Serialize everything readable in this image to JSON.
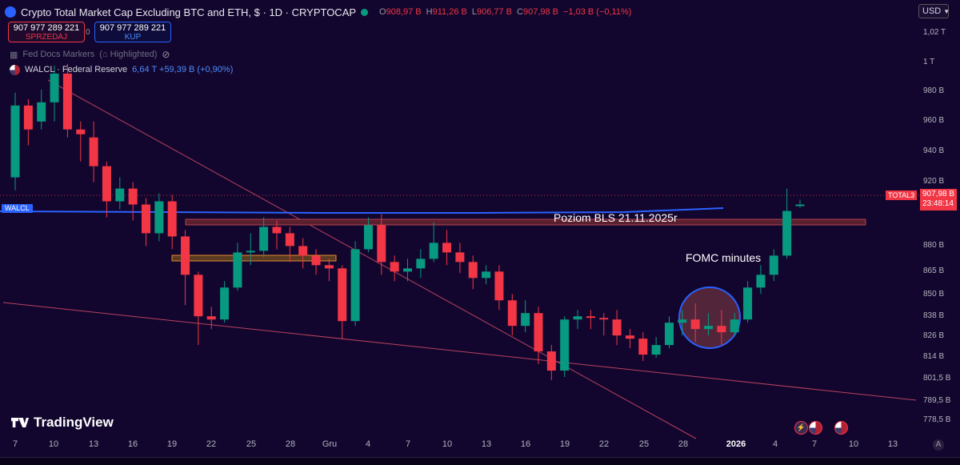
{
  "header": {
    "title": "Crypto Total Market Cap Excluding BTC and ETH, $ · 1D · CRYPTOCAP",
    "ohlc": {
      "o": "908,97 B",
      "h": "911,26 B",
      "l": "906,77 B",
      "c": "907,98 B",
      "change": "−1,03 B (−0,11%)"
    },
    "o_label": "O",
    "h_label": "H",
    "l_label": "L",
    "c_label": "C"
  },
  "trade": {
    "sell_price": "907 977 289 221",
    "sell_label": "SPRZEDAJ",
    "buy_price": "907 977 289 221",
    "buy_label": "KUP",
    "spread": "0"
  },
  "legend": {
    "fed_docs": "Fed Docs Markers",
    "fed_docs_extra": "Highlighted",
    "walcl_name": "WALCL · Federal Reserve",
    "walcl_vals": "6,64 T  +59,39 B (+0,90%)"
  },
  "currency": {
    "selected": "USD"
  },
  "price_axis": [
    "1,02 T",
    "1 T",
    "980 B",
    "960 B",
    "940 B",
    "920 B",
    "880 B",
    "865 B",
    "850 B",
    "838 B",
    "826 B",
    "814 B",
    "801,5 B",
    "789,5 B",
    "778,5 B"
  ],
  "time_axis": [
    "7",
    "10",
    "13",
    "16",
    "19",
    "22",
    "25",
    "28",
    "Gru",
    "4",
    "7",
    "10",
    "13",
    "16",
    "19",
    "22",
    "25",
    "28",
    "2026",
    "4",
    "7",
    "10",
    "13"
  ],
  "tags": {
    "walcl": "WALCL",
    "symbol": "TOTAL3",
    "last_price": "907,98 B",
    "countdown": "23:48:14"
  },
  "annotations": {
    "bls": "Poziom BLS 21.11.2025r",
    "fomc": "FOMC minutes"
  },
  "brand": {
    "name": "TradingView"
  },
  "colors": {
    "up": "#089981",
    "down": "#f23645",
    "walcl": "#2962ff",
    "background": "#13062e"
  },
  "chart_data": {
    "type": "candlestick",
    "candles": [
      [
        1,
        0.925,
        0.97,
        0.917,
        0.978
      ],
      [
        4,
        0.97,
        0.955,
        0.945,
        0.974
      ],
      [
        7,
        0.96,
        0.972,
        0.955,
        0.98
      ],
      [
        10,
        0.972,
        0.99,
        0.96,
        0.995
      ],
      [
        13,
        0.99,
        0.955,
        0.95,
        0.996
      ],
      [
        16,
        0.955,
        0.952,
        0.935,
        0.96
      ],
      [
        19,
        0.95,
        0.932,
        0.922,
        0.96
      ],
      [
        22,
        0.932,
        0.91,
        0.9,
        0.935
      ],
      [
        25,
        0.91,
        0.918,
        0.905,
        0.925
      ],
      [
        28,
        0.918,
        0.908,
        0.898,
        0.922
      ],
      [
        31,
        0.908,
        0.89,
        0.882,
        0.912
      ],
      [
        34,
        0.89,
        0.91,
        0.885,
        0.915
      ],
      [
        37,
        0.91,
        0.888,
        0.88,
        0.914
      ],
      [
        40,
        0.888,
        0.864,
        0.845,
        0.892
      ],
      [
        43,
        0.864,
        0.838,
        0.82,
        0.866
      ],
      [
        46,
        0.838,
        0.836,
        0.83,
        0.844
      ],
      [
        49,
        0.836,
        0.856,
        0.834,
        0.86
      ],
      [
        52,
        0.856,
        0.878,
        0.854,
        0.884
      ],
      [
        55,
        0.878,
        0.879,
        0.87,
        0.89
      ],
      [
        58,
        0.879,
        0.894,
        0.875,
        0.9
      ],
      [
        61,
        0.894,
        0.89,
        0.88,
        0.898
      ],
      [
        64,
        0.89,
        0.882,
        0.872,
        0.894
      ],
      [
        67,
        0.882,
        0.876,
        0.868,
        0.887
      ],
      [
        70,
        0.876,
        0.87,
        0.864,
        0.88
      ],
      [
        73,
        0.87,
        0.868,
        0.86,
        0.874
      ],
      [
        76,
        0.868,
        0.835,
        0.824,
        0.87
      ],
      [
        79,
        0.835,
        0.88,
        0.832,
        0.885
      ],
      [
        82,
        0.88,
        0.895,
        0.878,
        0.9
      ],
      [
        85,
        0.895,
        0.872,
        0.864,
        0.902
      ],
      [
        88,
        0.872,
        0.866,
        0.86,
        0.876
      ],
      [
        91,
        0.866,
        0.868,
        0.86,
        0.874
      ],
      [
        94,
        0.868,
        0.874,
        0.862,
        0.88
      ],
      [
        97,
        0.874,
        0.884,
        0.872,
        0.897
      ],
      [
        100,
        0.884,
        0.878,
        0.87,
        0.892
      ],
      [
        103,
        0.878,
        0.872,
        0.865,
        0.884
      ],
      [
        106,
        0.872,
        0.862,
        0.855,
        0.876
      ],
      [
        109,
        0.862,
        0.866,
        0.858,
        0.87
      ],
      [
        112,
        0.866,
        0.848,
        0.842,
        0.87
      ],
      [
        115,
        0.848,
        0.832,
        0.826,
        0.852
      ],
      [
        118,
        0.832,
        0.84,
        0.828,
        0.848
      ],
      [
        121,
        0.84,
        0.816,
        0.808,
        0.844
      ],
      [
        124,
        0.816,
        0.804,
        0.798,
        0.82
      ],
      [
        127,
        0.804,
        0.836,
        0.8,
        0.838
      ],
      [
        130,
        0.836,
        0.838,
        0.83,
        0.842
      ],
      [
        133,
        0.838,
        0.837,
        0.83,
        0.842
      ],
      [
        136,
        0.837,
        0.836,
        0.826,
        0.84
      ],
      [
        139,
        0.836,
        0.826,
        0.82,
        0.842
      ],
      [
        142,
        0.826,
        0.824,
        0.818,
        0.83
      ],
      [
        145,
        0.824,
        0.814,
        0.81,
        0.828
      ],
      [
        148,
        0.814,
        0.82,
        0.812,
        0.825
      ],
      [
        151,
        0.82,
        0.834,
        0.818,
        0.838
      ],
      [
        154,
        0.834,
        0.836,
        0.826,
        0.842
      ],
      [
        157,
        0.836,
        0.83,
        0.822,
        0.846
      ],
      [
        160,
        0.83,
        0.832,
        0.826,
        0.84
      ],
      [
        163,
        0.832,
        0.828,
        0.82,
        0.842
      ],
      [
        166,
        0.828,
        0.836,
        0.826,
        0.84
      ],
      [
        169,
        0.836,
        0.856,
        0.834,
        0.86
      ],
      [
        172,
        0.856,
        0.864,
        0.852,
        0.87
      ],
      [
        175,
        0.864,
        0.876,
        0.86,
        0.88
      ],
      [
        178,
        0.876,
        0.904,
        0.874,
        0.918
      ],
      [
        181,
        0.908,
        0.908,
        0.906,
        0.911
      ]
    ]
  }
}
